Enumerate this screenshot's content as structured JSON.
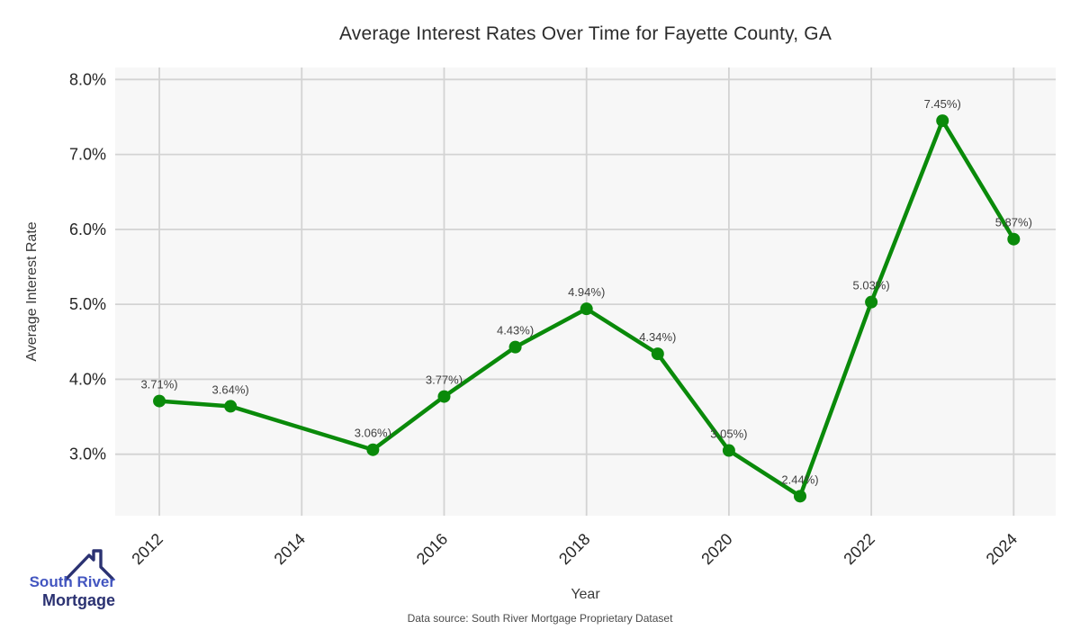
{
  "chart_data": {
    "type": "line",
    "title": "Average Interest Rates Over Time for Fayette County, GA",
    "xlabel": "Year",
    "ylabel": "Average Interest Rate",
    "x": [
      2012,
      2013,
      2015,
      2016,
      2017,
      2018,
      2019,
      2020,
      2021,
      2022,
      2023,
      2024
    ],
    "values": [
      3.71,
      3.64,
      3.06,
      3.77,
      4.43,
      4.94,
      4.34,
      3.05,
      2.44,
      5.03,
      7.45,
      5.87
    ],
    "point_labels": [
      "3.71%)",
      "3.64%)",
      "3.06%)",
      "3.77%)",
      "4.43%)",
      "4.94%)",
      "4.34%)",
      "3.05%)",
      "2.44%)",
      "5.03%)",
      "7.45%)",
      "5.87%)"
    ],
    "x_ticks": [
      {
        "value": 2012,
        "label": "2012"
      },
      {
        "value": 2014,
        "label": "2014"
      },
      {
        "value": 2016,
        "label": "2016"
      },
      {
        "value": 2018,
        "label": "2018"
      },
      {
        "value": 2020,
        "label": "2020"
      },
      {
        "value": 2022,
        "label": "2022"
      },
      {
        "value": 2024,
        "label": "2024"
      }
    ],
    "y_ticks": [
      {
        "value": 3,
        "label": "3.0%"
      },
      {
        "value": 4,
        "label": "4.0%"
      },
      {
        "value": 5,
        "label": "5.0%"
      },
      {
        "value": 6,
        "label": "6.0%"
      },
      {
        "value": 7,
        "label": "7.0%"
      },
      {
        "value": 8,
        "label": "8.0%"
      }
    ],
    "xlim": [
      2011.38,
      2024.59
    ],
    "ylim": [
      2.18,
      8.16
    ],
    "grid": true,
    "legend": "none",
    "colors": {
      "line": "#0a8a0a",
      "marker": "#0a8a0a",
      "plot_background": "#f7f7f7",
      "grid_line": "#d3d3d3",
      "tick_text": "#262626",
      "point_label_text": "#404040"
    }
  },
  "branding": {
    "logo_line1": "South River",
    "logo_line2": "Mortgage",
    "logo_line1_color": "#4356c0",
    "logo_line2_color": "#2b3272",
    "roof_color": "#2b3272"
  },
  "footer": {
    "text": "Data source: South River Mortgage Proprietary Dataset"
  }
}
